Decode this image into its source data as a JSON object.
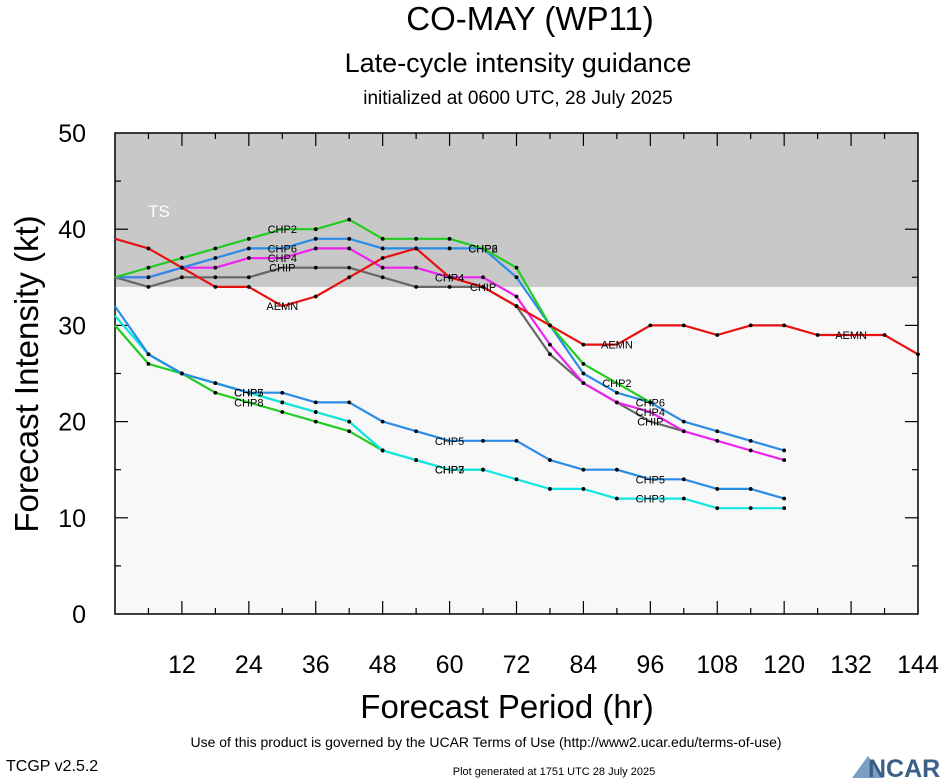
{
  "title": "CO-MAY (WP11)",
  "subtitle": "Late-cycle intensity guidance",
  "initialized": "initialized at 0600 UTC, 28 July 2025",
  "footer": {
    "terms": "Use of this product is governed by the UCAR Terms of Use (http://www2.ucar.edu/terms-of-use)",
    "version": "TCGP v2.5.2",
    "generated": "Plot generated at 1751 UTC   28 July 2025",
    "logo_text": "NCAR"
  },
  "colors": {
    "ts_band": "#c8c8c8",
    "plot_bg": "#f8f8f8",
    "AEMN": "#e81010",
    "CHP2": "#22cc22",
    "CHP6": "#2b8ce6",
    "CHP4": "#ee22ee",
    "CHIP": "#666666",
    "CHP5": "#2b8ce6",
    "CHP7": "#22cc22",
    "CHP8": "#22cc22",
    "CHP3": "#11e6e6"
  },
  "chart_data": {
    "type": "line",
    "xlabel": "Forecast Period (hr)",
    "ylabel": "Forecast Intensity (kt)",
    "xlim": [
      0,
      144
    ],
    "ylim": [
      0,
      50
    ],
    "xticks": [
      12,
      24,
      36,
      48,
      60,
      72,
      84,
      96,
      108,
      120,
      132,
      144
    ],
    "yticks": [
      0,
      10,
      20,
      30,
      40,
      50
    ],
    "grid": false,
    "bands": [
      {
        "label": "TS",
        "from": 34,
        "to": 50
      }
    ],
    "series": [
      {
        "name": "AEMN",
        "x": [
          0,
          6,
          12,
          18,
          24,
          30,
          36,
          42,
          48,
          54,
          60,
          66,
          72,
          78,
          84,
          90,
          96,
          102,
          108,
          114,
          120,
          126,
          132,
          138,
          144
        ],
        "y": [
          39,
          38,
          36,
          34,
          34,
          32,
          33,
          35,
          37,
          38,
          35,
          34,
          32,
          30,
          28,
          28,
          30,
          30,
          29,
          30,
          30,
          29,
          29,
          29,
          27
        ],
        "labels_at": [
          30,
          90,
          132
        ]
      },
      {
        "name": "CHP2",
        "x": [
          0,
          6,
          12,
          18,
          24,
          30,
          36,
          42,
          48,
          54,
          60,
          66,
          72,
          78,
          84,
          90,
          96
        ],
        "y": [
          35,
          36,
          37,
          38,
          39,
          40,
          40,
          41,
          39,
          39,
          39,
          38,
          36,
          30,
          26,
          24,
          22
        ],
        "labels_at": [
          30,
          66,
          90
        ]
      },
      {
        "name": "CHP6",
        "x": [
          0,
          6,
          12,
          18,
          24,
          30,
          36,
          42,
          48,
          54,
          60,
          66,
          72,
          78,
          84,
          90,
          96,
          102,
          108,
          114,
          120
        ],
        "y": [
          35,
          35,
          36,
          37,
          38,
          38,
          39,
          39,
          38,
          38,
          38,
          38,
          35,
          30,
          25,
          23,
          22,
          20,
          19,
          18,
          17
        ],
        "labels_at": [
          30,
          66,
          96
        ]
      },
      {
        "name": "CHP4",
        "x": [
          0,
          6,
          12,
          18,
          24,
          30,
          36,
          42,
          48,
          54,
          60,
          66,
          72,
          78,
          84,
          90,
          96,
          102,
          108,
          114,
          120
        ],
        "y": [
          35,
          35,
          36,
          36,
          37,
          37,
          38,
          38,
          36,
          36,
          35,
          35,
          33,
          28,
          24,
          22,
          21,
          19,
          18,
          17,
          16
        ],
        "labels_at": [
          30,
          60,
          96
        ]
      },
      {
        "name": "CHIP",
        "x": [
          0,
          6,
          12,
          18,
          24,
          30,
          36,
          42,
          48,
          54,
          60,
          66,
          72,
          78,
          84,
          90,
          96,
          102
        ],
        "y": [
          35,
          34,
          35,
          35,
          35,
          36,
          36,
          36,
          35,
          34,
          34,
          34,
          32,
          27,
          24,
          22,
          20,
          19
        ],
        "labels_at": [
          30,
          66,
          96
        ]
      },
      {
        "name": "CHP5",
        "x": [
          0,
          6,
          12,
          18,
          24,
          30,
          36,
          42,
          48,
          54,
          60,
          66,
          72,
          78,
          84,
          90,
          96,
          102,
          108,
          114,
          120
        ],
        "y": [
          32,
          27,
          25,
          24,
          23,
          23,
          22,
          22,
          20,
          19,
          18,
          18,
          18,
          16,
          15,
          15,
          14,
          14,
          13,
          13,
          12
        ],
        "labels_at": [
          24,
          60,
          96
        ]
      },
      {
        "name": "CHP7",
        "x": [
          0,
          6,
          12,
          18,
          24,
          30,
          36,
          42,
          48,
          54,
          60,
          66
        ],
        "y": [
          31,
          27,
          25,
          24,
          23,
          22,
          21,
          20,
          17,
          16,
          15,
          15
        ],
        "labels_at": [
          24,
          60
        ]
      },
      {
        "name": "CHP8",
        "x": [
          0,
          6,
          12,
          18,
          24,
          30,
          36,
          42,
          48
        ],
        "y": [
          30,
          26,
          25,
          23,
          22,
          21,
          20,
          19,
          17
        ],
        "labels_at": [
          24
        ]
      },
      {
        "name": "CHP3",
        "x": [
          0,
          6,
          12,
          18,
          24,
          30,
          36,
          42,
          48,
          54,
          60,
          66,
          72,
          78,
          84,
          90,
          96,
          102,
          108,
          114,
          120
        ],
        "y": [
          31,
          27,
          25,
          24,
          23,
          22,
          21,
          20,
          17,
          16,
          15,
          15,
          14,
          13,
          13,
          12,
          12,
          12,
          11,
          11,
          11
        ],
        "labels_at": [
          60,
          96
        ]
      }
    ]
  }
}
